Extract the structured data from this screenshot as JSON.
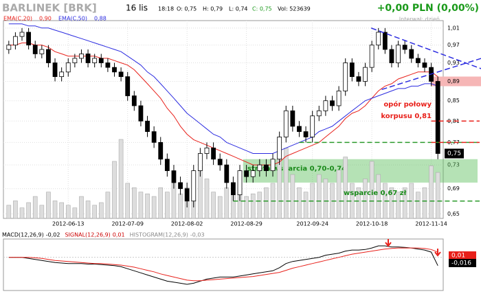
{
  "chart_data": [
    {
      "type": "candlestick",
      "title": "BARLINEK [BRK]",
      "date": "16 lis",
      "time": "18:18",
      "quote": {
        "open": "O: 0,75",
        "high": "H: 0,79",
        "low": "L: 0,74",
        "close": "C: 0,75",
        "volume": "Vol: 523639"
      },
      "change": "+0,00 PLN (0,00%)",
      "interval": "Interwał: dzień",
      "categories": [
        null,
        null,
        null,
        null,
        null,
        null,
        null,
        null,
        null,
        "2012-06-13",
        null,
        null,
        null,
        null,
        null,
        null,
        null,
        null,
        "2012-07-09",
        null,
        null,
        null,
        null,
        null,
        null,
        null,
        null,
        "2012-08-02",
        null,
        null,
        null,
        null,
        null,
        null,
        null,
        null,
        "2012-08-29",
        null,
        null,
        null,
        null,
        null,
        null,
        null,
        null,
        null,
        "2012-09-24",
        null,
        null,
        null,
        null,
        null,
        null,
        null,
        null,
        "2012-10-18",
        null,
        null,
        null,
        null,
        null,
        null,
        null,
        null,
        "2012-11-14",
        null
      ],
      "open": [
        0.96,
        0.97,
        0.99,
        1.0,
        0.97,
        0.95,
        0.96,
        0.93,
        0.9,
        0.91,
        0.93,
        0.94,
        0.95,
        0.93,
        0.94,
        0.93,
        0.92,
        0.91,
        0.9,
        0.86,
        0.84,
        0.81,
        0.79,
        0.77,
        0.74,
        0.72,
        0.7,
        0.69,
        0.67,
        0.72,
        0.75,
        0.76,
        0.74,
        0.73,
        0.7,
        0.68,
        0.72,
        0.71,
        0.72,
        0.73,
        0.72,
        0.74,
        0.78,
        0.83,
        0.8,
        0.79,
        0.78,
        0.82,
        0.83,
        0.85,
        0.84,
        0.87,
        0.93,
        0.9,
        0.89,
        0.92,
        0.97,
        1.0,
        0.96,
        0.93,
        0.97,
        0.96,
        0.94,
        0.93,
        0.92,
        0.89
      ],
      "high": [
        0.98,
        1.0,
        1.01,
        1.01,
        0.98,
        0.97,
        0.97,
        0.94,
        0.92,
        0.94,
        0.95,
        0.96,
        0.96,
        0.95,
        0.95,
        0.94,
        0.93,
        0.92,
        0.91,
        0.87,
        0.85,
        0.82,
        0.8,
        0.78,
        0.75,
        0.73,
        0.71,
        0.7,
        0.73,
        0.76,
        0.77,
        0.77,
        0.75,
        0.74,
        0.71,
        0.73,
        0.73,
        0.73,
        0.74,
        0.74,
        0.75,
        0.79,
        0.84,
        0.84,
        0.81,
        0.8,
        0.83,
        0.84,
        0.86,
        0.86,
        0.88,
        0.94,
        0.94,
        0.91,
        0.93,
        0.98,
        1.01,
        1.01,
        0.97,
        0.98,
        0.98,
        0.97,
        0.95,
        0.94,
        0.93,
        0.9
      ],
      "low": [
        0.95,
        0.96,
        0.98,
        0.96,
        0.94,
        0.94,
        0.92,
        0.89,
        0.89,
        0.9,
        0.92,
        0.93,
        0.92,
        0.92,
        0.92,
        0.91,
        0.9,
        0.89,
        0.85,
        0.83,
        0.8,
        0.78,
        0.76,
        0.73,
        0.71,
        0.69,
        0.68,
        0.66,
        0.66,
        0.71,
        0.74,
        0.73,
        0.72,
        0.69,
        0.67,
        0.67,
        0.7,
        0.7,
        0.71,
        0.71,
        0.71,
        0.73,
        0.77,
        0.79,
        0.78,
        0.77,
        0.77,
        0.81,
        0.82,
        0.83,
        0.83,
        0.86,
        0.89,
        0.88,
        0.88,
        0.91,
        0.96,
        0.95,
        0.92,
        0.92,
        0.95,
        0.93,
        0.92,
        0.91,
        0.88,
        0.74
      ],
      "close": [
        0.97,
        0.99,
        1.0,
        0.97,
        0.95,
        0.96,
        0.93,
        0.9,
        0.91,
        0.93,
        0.94,
        0.95,
        0.93,
        0.94,
        0.93,
        0.92,
        0.91,
        0.9,
        0.86,
        0.84,
        0.81,
        0.79,
        0.77,
        0.74,
        0.72,
        0.7,
        0.69,
        0.67,
        0.72,
        0.75,
        0.76,
        0.74,
        0.73,
        0.7,
        0.68,
        0.72,
        0.71,
        0.72,
        0.73,
        0.72,
        0.74,
        0.78,
        0.83,
        0.8,
        0.79,
        0.78,
        0.82,
        0.83,
        0.85,
        0.84,
        0.87,
        0.93,
        0.9,
        0.89,
        0.92,
        0.97,
        1.0,
        0.96,
        0.93,
        0.97,
        0.96,
        0.94,
        0.93,
        0.92,
        0.89,
        0.75
      ],
      "volume": [
        150000,
        200000,
        120000,
        180000,
        250000,
        150000,
        300000,
        200000,
        180000,
        150000,
        120000,
        250000,
        200000,
        150000,
        180000,
        300000,
        650000,
        900000,
        400000,
        350000,
        300000,
        280000,
        250000,
        350000,
        300000,
        400000,
        280000,
        350000,
        500000,
        600000,
        450000,
        300000,
        250000,
        350000,
        400000,
        300000,
        250000,
        280000,
        300000,
        350000,
        400000,
        700000,
        800000,
        500000,
        350000,
        300000,
        400000,
        500000,
        450000,
        400000,
        550000,
        700000,
        400000,
        350000,
        450000,
        650000,
        500000,
        400000,
        350000,
        300000,
        350000,
        400000,
        300000,
        350000,
        600000,
        523639
      ],
      "series": [
        {
          "name": "EMA(C,20)",
          "last_label": "0,90",
          "color": "#e8201a",
          "values": [
            0.97,
            0.97,
            0.975,
            0.975,
            0.97,
            0.97,
            0.965,
            0.955,
            0.95,
            0.945,
            0.945,
            0.945,
            0.945,
            0.945,
            0.94,
            0.94,
            0.935,
            0.93,
            0.925,
            0.915,
            0.9,
            0.885,
            0.87,
            0.855,
            0.835,
            0.82,
            0.8,
            0.785,
            0.775,
            0.77,
            0.765,
            0.76,
            0.755,
            0.75,
            0.745,
            0.74,
            0.735,
            0.73,
            0.73,
            0.73,
            0.73,
            0.735,
            0.745,
            0.75,
            0.755,
            0.76,
            0.765,
            0.77,
            0.78,
            0.79,
            0.8,
            0.815,
            0.825,
            0.83,
            0.84,
            0.855,
            0.87,
            0.88,
            0.885,
            0.895,
            0.9,
            0.905,
            0.91,
            0.91,
            0.91,
            0.9
          ]
        },
        {
          "name": "EMA(C,50)",
          "last_label": "0,88",
          "color": "#2b2be0",
          "values": [
            1.02,
            1.02,
            1.02,
            1.015,
            1.015,
            1.01,
            1.01,
            1.005,
            1.0,
            0.995,
            0.99,
            0.985,
            0.98,
            0.975,
            0.97,
            0.965,
            0.96,
            0.955,
            0.945,
            0.935,
            0.925,
            0.91,
            0.9,
            0.885,
            0.87,
            0.855,
            0.84,
            0.825,
            0.815,
            0.805,
            0.795,
            0.785,
            0.78,
            0.77,
            0.765,
            0.76,
            0.755,
            0.75,
            0.75,
            0.75,
            0.75,
            0.755,
            0.76,
            0.765,
            0.77,
            0.775,
            0.78,
            0.79,
            0.795,
            0.8,
            0.81,
            0.82,
            0.83,
            0.84,
            0.85,
            0.855,
            0.86,
            0.865,
            0.87,
            0.875,
            0.875,
            0.88,
            0.88,
            0.885,
            0.885,
            0.88
          ]
        }
      ],
      "log_scale": true,
      "ylim": [
        0.643,
        1.028
      ],
      "yticks": [
        {
          "value": 1.01,
          "label": "1,01"
        },
        {
          "value": 0.97,
          "label": "0,97"
        },
        {
          "value": 0.93,
          "label": "0,93"
        },
        {
          "value": 0.89,
          "label": "0,89"
        },
        {
          "value": 0.85,
          "label": "0,85"
        },
        {
          "value": 0.81,
          "label": "0,81"
        },
        {
          "value": 0.77,
          "label": "0,77"
        },
        {
          "value": 0.73,
          "label": "0,73"
        },
        {
          "value": 0.69,
          "label": "0,69"
        },
        {
          "value": 0.65,
          "label": "0,65"
        }
      ],
      "last_price": {
        "value": 0.75,
        "label": "0,75"
      },
      "grid": true,
      "zone": {
        "low": 0.7,
        "high": 0.74,
        "from": 35.5,
        "text": "strefa wsparcia 0,70-0,74"
      },
      "levels": [
        {
          "value": 0.77,
          "color": "#2a9a2a",
          "from": 44
        },
        {
          "value": 0.67,
          "color": "#2a9a2a",
          "from": 34,
          "text": "wsparcie 0,67 zł"
        },
        {
          "value": 0.81,
          "color": "#e8201a",
          "from": 64
        },
        {
          "value": 0.77,
          "color": "#e8201a",
          "from": 64
        }
      ],
      "resistance_text": [
        "opór połowy",
        "korpusu 0,81"
      ],
      "trendlines": [
        {
          "x": [
            54.9,
            71.6
          ],
          "y": [
            1.01,
            0.917
          ],
          "color": "#2b2be0"
        },
        {
          "x": [
            56.5,
            71.6
          ],
          "y": [
            0.873,
            0.94
          ],
          "color": "#2b2be0"
        }
      ]
    },
    {
      "type": "macd",
      "series": [
        {
          "name": "MACD(12,26,9)",
          "last_label": "-0,016",
          "header_label": "-0,02",
          "color": "#000000",
          "values": [
            0,
            0,
            0,
            -0.002,
            -0.004,
            -0.006,
            -0.008,
            -0.01,
            -0.011,
            -0.012,
            -0.012,
            -0.012,
            -0.013,
            -0.013,
            -0.014,
            -0.015,
            -0.016,
            -0.018,
            -0.022,
            -0.026,
            -0.03,
            -0.034,
            -0.038,
            -0.042,
            -0.046,
            -0.048,
            -0.05,
            -0.052,
            -0.05,
            -0.046,
            -0.042,
            -0.04,
            -0.038,
            -0.038,
            -0.038,
            -0.036,
            -0.034,
            -0.032,
            -0.03,
            -0.028,
            -0.026,
            -0.02,
            -0.012,
            -0.008,
            -0.006,
            -0.004,
            -0.002,
            0.0,
            0.004,
            0.006,
            0.008,
            0.012,
            0.014,
            0.014,
            0.015,
            0.018,
            0.022,
            0.022,
            0.02,
            0.02,
            0.019,
            0.018,
            0.016,
            0.014,
            0.01,
            -0.016
          ]
        },
        {
          "name": "SIGNAL(12,26,9)",
          "last_label": "0,01",
          "header_label": "0,01",
          "color": "#e8201a",
          "values": [
            0,
            0,
            0,
            0,
            -0.001,
            -0.002,
            -0.004,
            -0.006,
            -0.007,
            -0.008,
            -0.009,
            -0.01,
            -0.011,
            -0.012,
            -0.012,
            -0.013,
            -0.014,
            -0.015,
            -0.017,
            -0.019,
            -0.022,
            -0.025,
            -0.028,
            -0.032,
            -0.035,
            -0.038,
            -0.041,
            -0.044,
            -0.045,
            -0.045,
            -0.044,
            -0.043,
            -0.042,
            -0.041,
            -0.04,
            -0.039,
            -0.038,
            -0.037,
            -0.035,
            -0.033,
            -0.031,
            -0.029,
            -0.025,
            -0.021,
            -0.018,
            -0.015,
            -0.012,
            -0.009,
            -0.006,
            -0.003,
            0.0,
            0.003,
            0.006,
            0.008,
            0.01,
            0.012,
            0.014,
            0.016,
            0.017,
            0.018,
            0.018,
            0.018,
            0.018,
            0.017,
            0.015,
            0.01
          ]
        }
      ],
      "histogram": {
        "name": "HISTOGRAM(12,26,9)",
        "header_label": "-0,03"
      },
      "ylim": [
        -0.06,
        0.03
      ]
    }
  ]
}
